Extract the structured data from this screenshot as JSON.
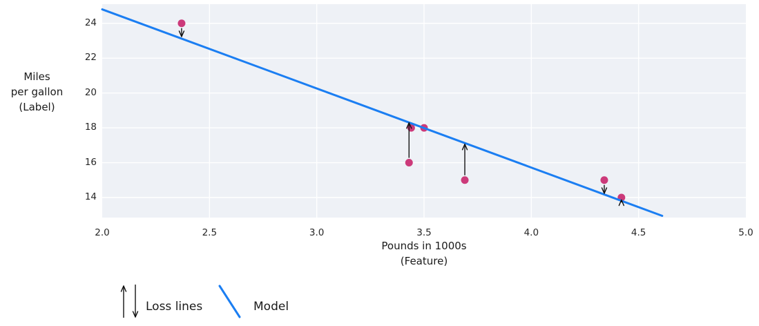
{
  "colors": {
    "page_bg": "#ffffff",
    "plot_bg": "#eef1f6",
    "grid": "#ffffff",
    "model_line": "#1b7ef2",
    "point": "#cc3a7a",
    "arrow": "#111111",
    "text": "#1a1a1a"
  },
  "chart_data": {
    "type": "scatter",
    "title": "",
    "xlabel_lines": [
      "Pounds in 1000s",
      "(Feature)"
    ],
    "ylabel_lines": [
      "Miles",
      "per gallon",
      "(Label)"
    ],
    "xlim": [
      2.0,
      5.0
    ],
    "ylim": [
      12.85,
      25.1
    ],
    "xticks": [
      "2.0",
      "2.5",
      "3.0",
      "3.5",
      "4.0",
      "4.5",
      "5.0"
    ],
    "yticks": [
      "24",
      "22",
      "20",
      "18",
      "16",
      "14"
    ],
    "grid": true,
    "legend_position": "bottom-left",
    "points": [
      {
        "x": 2.37,
        "y": 24
      },
      {
        "x": 3.44,
        "y": 18
      },
      {
        "x": 3.5,
        "y": 18
      },
      {
        "x": 3.43,
        "y": 16
      },
      {
        "x": 3.69,
        "y": 15
      },
      {
        "x": 4.34,
        "y": 15
      },
      {
        "x": 4.42,
        "y": 14
      }
    ],
    "model_line": {
      "x1": 2.0,
      "y1": 24.8,
      "x2": 4.61,
      "y2": 12.95
    },
    "loss_arrows": [
      {
        "x": 2.37,
        "from": 24,
        "to": 23.2,
        "direction": "down"
      },
      {
        "x": 3.43,
        "from": 16,
        "to": 18.33,
        "direction": "up"
      },
      {
        "x": 3.69,
        "from": 15,
        "to": 17.1,
        "direction": "up"
      },
      {
        "x": 4.34,
        "from": 15,
        "to": 14.2,
        "direction": "down"
      },
      {
        "x": 4.42,
        "from": 14,
        "to": 13.82,
        "direction": "down"
      }
    ],
    "legend": [
      {
        "label": "Loss lines",
        "symbol": "arrows"
      },
      {
        "label": "Model",
        "symbol": "line"
      }
    ]
  }
}
